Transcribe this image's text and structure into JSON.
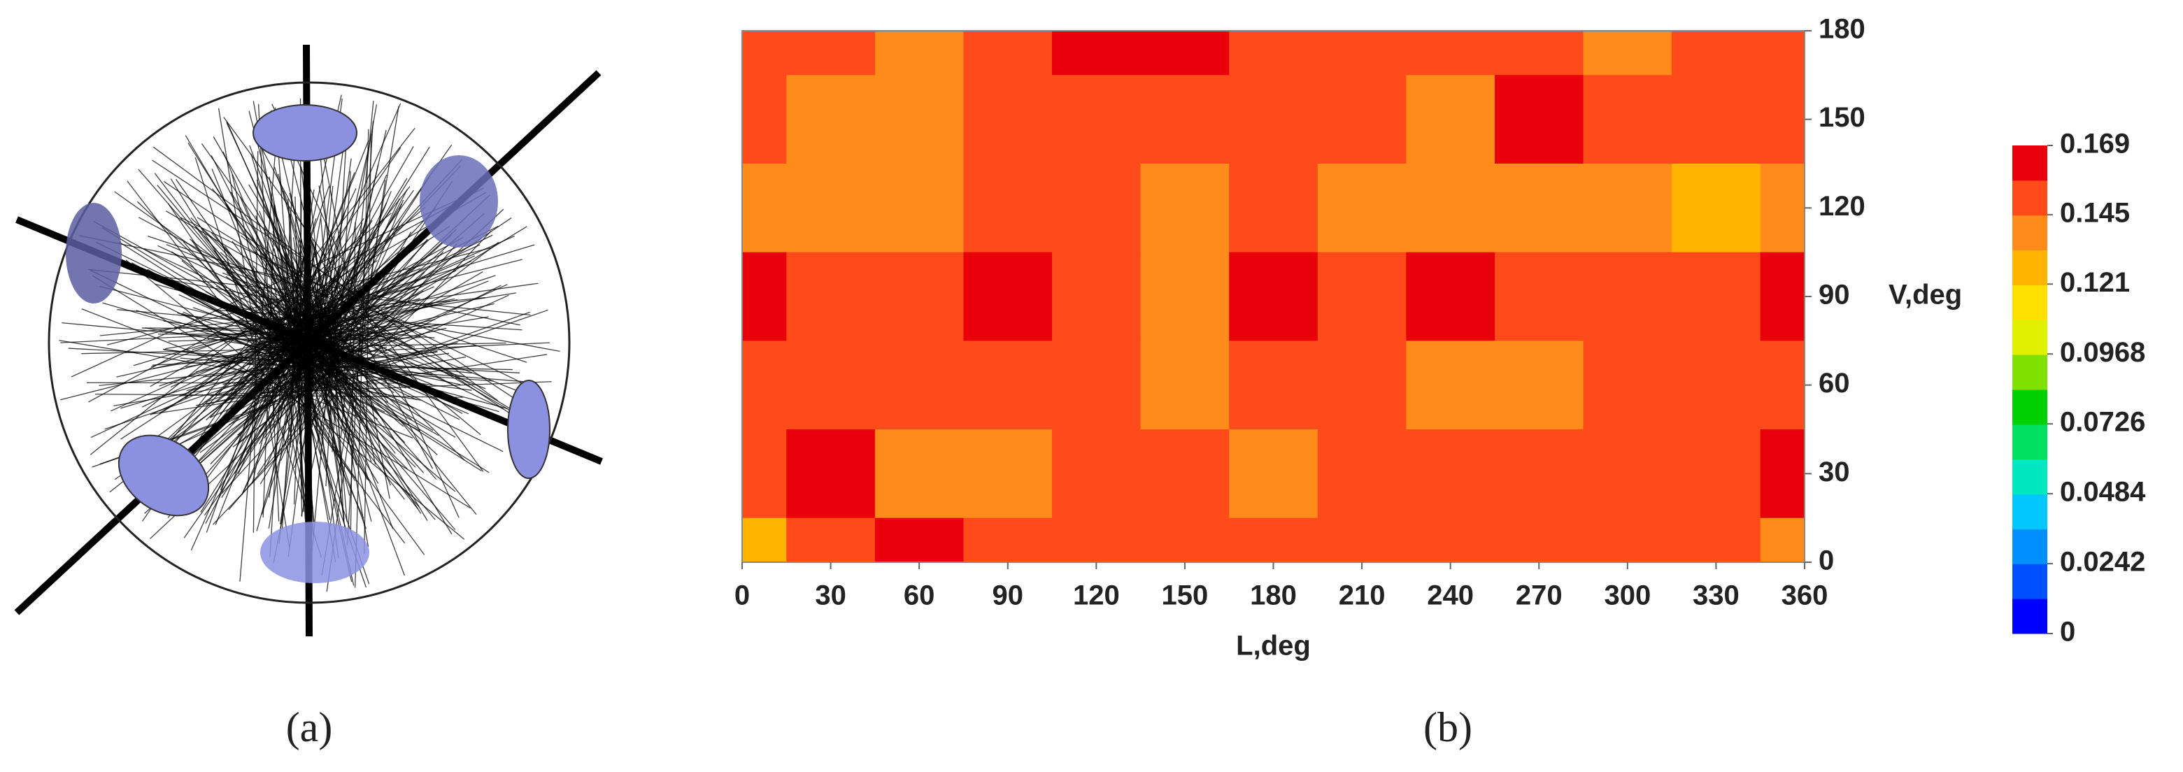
{
  "panels": {
    "a": "(a)",
    "b": "(b)"
  },
  "chart_data": {
    "type": "contour",
    "x_label": "L,deg",
    "y_label": "V,deg",
    "x": [
      0,
      30,
      60,
      90,
      120,
      150,
      180,
      210,
      240,
      270,
      300,
      330,
      360
    ],
    "y": [
      180,
      150,
      120,
      90,
      60,
      30,
      0
    ],
    "z": [
      [
        0.15,
        0.15,
        0.14,
        0.15,
        0.165,
        0.165,
        0.15,
        0.15,
        0.15,
        0.15,
        0.14,
        0.15,
        0.15
      ],
      [
        0.15,
        0.14,
        0.14,
        0.15,
        0.15,
        0.15,
        0.15,
        0.15,
        0.14,
        0.165,
        0.15,
        0.15,
        0.15
      ],
      [
        0.14,
        0.14,
        0.14,
        0.15,
        0.15,
        0.14,
        0.15,
        0.14,
        0.14,
        0.14,
        0.14,
        0.13,
        0.14
      ],
      [
        0.165,
        0.15,
        0.15,
        0.165,
        0.15,
        0.14,
        0.165,
        0.15,
        0.165,
        0.15,
        0.15,
        0.15,
        0.165
      ],
      [
        0.15,
        0.15,
        0.15,
        0.15,
        0.15,
        0.14,
        0.15,
        0.15,
        0.14,
        0.14,
        0.15,
        0.15,
        0.15
      ],
      [
        0.15,
        0.165,
        0.14,
        0.14,
        0.15,
        0.15,
        0.14,
        0.15,
        0.15,
        0.15,
        0.15,
        0.15,
        0.165
      ],
      [
        0.13,
        0.15,
        0.165,
        0.15,
        0.15,
        0.15,
        0.15,
        0.15,
        0.15,
        0.15,
        0.15,
        0.15,
        0.14
      ]
    ],
    "xlim": [
      0,
      360
    ],
    "ylim": [
      0,
      180
    ],
    "xticks": [
      0,
      30,
      60,
      90,
      120,
      150,
      180,
      210,
      240,
      270,
      300,
      330,
      360
    ],
    "yticks": [
      0,
      30,
      60,
      90,
      120,
      150,
      180
    ],
    "colorbar": {
      "ticks": [
        0,
        0.0242,
        0.0484,
        0.0726,
        0.0968,
        0.121,
        0.145,
        0.169
      ],
      "colors": [
        "#0000ff",
        "#0050ff",
        "#0090ff",
        "#00c8ff",
        "#00e8c0",
        "#00e060",
        "#00d000",
        "#80e000",
        "#e0f000",
        "#ffe000",
        "#ffb400",
        "#ff8c1a",
        "#ff4a1a",
        "#e8000a"
      ]
    }
  }
}
